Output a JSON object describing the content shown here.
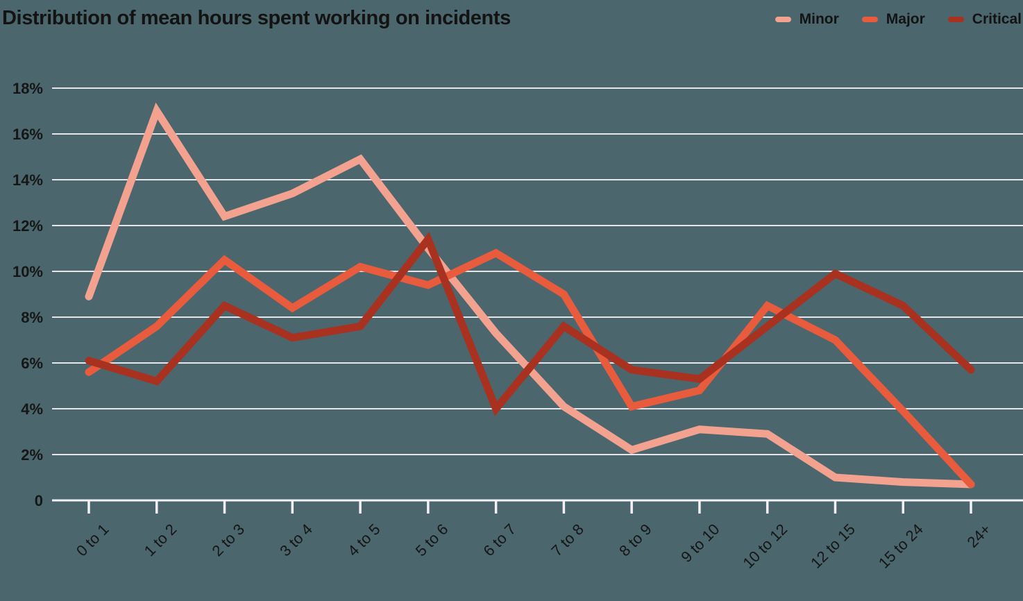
{
  "title": "Distribution of mean hours spent working on incidents",
  "colors": {
    "background": "#4b666d",
    "gridline": "#e6e5ea",
    "baseline": "#f3f1f6",
    "axis_text": "#161616",
    "title_text": "#131313"
  },
  "legend": {
    "position": "top-right",
    "items": [
      {
        "label": "Minor",
        "color": "#f2a28f"
      },
      {
        "label": "Major",
        "color": "#e85b3c"
      },
      {
        "label": "Critical",
        "color": "#a93120"
      }
    ]
  },
  "chart_data": {
    "type": "line",
    "title": "Distribution of mean hours spent working on incidents",
    "xlabel": "",
    "ylabel": "",
    "grid": "horizontal",
    "legend_position": "top-right",
    "ylim": [
      0,
      18
    ],
    "ytick_step": 2,
    "ytick_labels": [
      "0",
      "2%",
      "4%",
      "6%",
      "8%",
      "10%",
      "12%",
      "14%",
      "16%",
      "18%"
    ],
    "categories": [
      "0 to 1",
      "1 to 2",
      "2 to 3",
      "3 to 4",
      "4 to 5",
      "5 to 6",
      "6 to 7",
      "7 to 8",
      "8 to 9",
      "9 to 10",
      "10 to 12",
      "12 to 15",
      "15 to 24",
      "24+"
    ],
    "series": [
      {
        "name": "Minor",
        "color": "#f2a28f",
        "values": [
          8.9,
          17.0,
          12.4,
          13.4,
          14.9,
          11.0,
          7.3,
          4.1,
          2.2,
          3.1,
          2.9,
          1.0,
          0.8,
          0.7
        ]
      },
      {
        "name": "Major",
        "color": "#e85b3c",
        "values": [
          5.6,
          7.6,
          10.5,
          8.4,
          10.2,
          9.4,
          10.8,
          9.0,
          4.1,
          4.8,
          8.5,
          7.0,
          3.9,
          0.7
        ]
      },
      {
        "name": "Critical",
        "color": "#a93120",
        "values": [
          6.1,
          5.2,
          8.5,
          7.1,
          7.6,
          11.4,
          4.0,
          7.6,
          5.7,
          5.3,
          7.6,
          9.9,
          8.5,
          5.7
        ]
      }
    ]
  }
}
